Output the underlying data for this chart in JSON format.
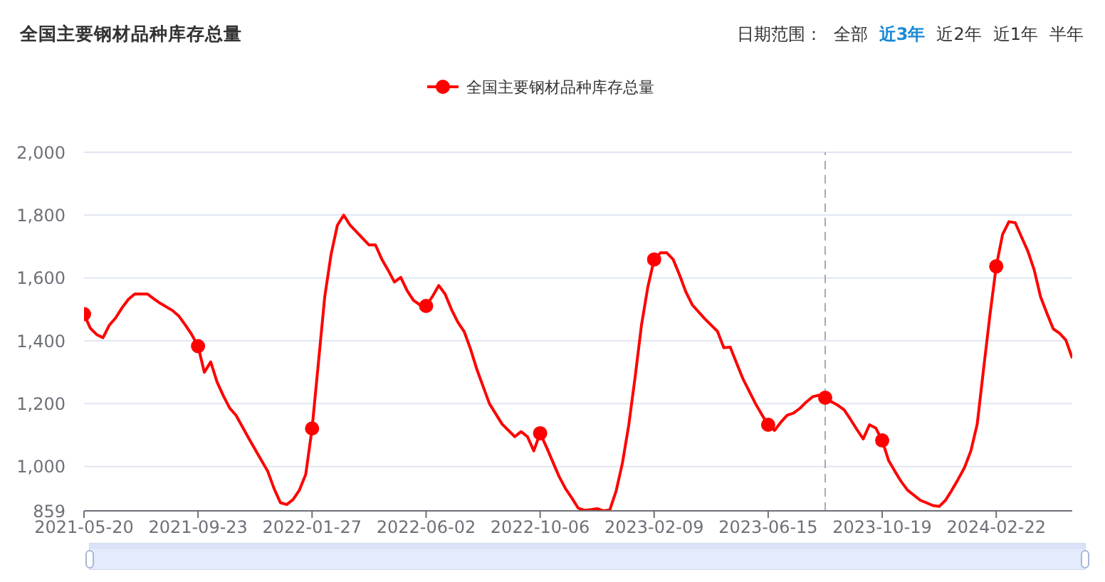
{
  "chart_data": {
    "type": "line",
    "title": "全国主要钢材品种库存总量",
    "annotations": [
      "日期范围：",
      "全部",
      "近3年",
      "近2年",
      "近1年",
      "半年"
    ],
    "x": [
      "2021-05-20",
      "2021-05-27",
      "2021-06-03",
      "2021-06-10",
      "2021-06-17",
      "2021-06-24",
      "2021-07-01",
      "2021-07-08",
      "2021-07-15",
      "2021-07-29",
      "2021-08-05",
      "2021-08-12",
      "2021-08-26",
      "2021-09-02",
      "2021-09-09",
      "2021-09-16",
      "2021-09-23",
      "2021-09-30",
      "2021-10-07",
      "2021-10-14",
      "2021-10-21",
      "2021-10-28",
      "2021-11-04",
      "2021-11-18",
      "2021-12-02",
      "2021-12-09",
      "2021-12-16",
      "2021-12-23",
      "2021-12-30",
      "2022-01-06",
      "2022-01-13",
      "2022-01-20",
      "2022-01-27",
      "2022-02-03",
      "2022-02-10",
      "2022-02-17",
      "2022-02-24",
      "2022-03-03",
      "2022-03-10",
      "2022-03-24",
      "2022-03-31",
      "2022-04-07",
      "2022-04-14",
      "2022-04-21",
      "2022-04-28",
      "2022-05-05",
      "2022-05-12",
      "2022-05-19",
      "2022-05-26",
      "2022-06-02",
      "2022-06-09",
      "2022-06-16",
      "2022-06-23",
      "2022-06-30",
      "2022-07-07",
      "2022-07-14",
      "2022-07-21",
      "2022-07-28",
      "2022-08-04",
      "2022-08-11",
      "2022-08-25",
      "2022-09-08",
      "2022-09-15",
      "2022-09-22",
      "2022-09-29",
      "2022-10-06",
      "2022-10-13",
      "2022-10-20",
      "2022-10-27",
      "2022-11-03",
      "2022-11-10",
      "2022-11-17",
      "2022-11-24",
      "2022-12-01",
      "2022-12-08",
      "2022-12-15",
      "2022-12-22",
      "2022-12-29",
      "2023-01-05",
      "2023-01-12",
      "2023-01-19",
      "2023-01-26",
      "2023-02-02",
      "2023-02-09",
      "2023-02-16",
      "2023-02-23",
      "2023-03-02",
      "2023-03-09",
      "2023-03-16",
      "2023-03-23",
      "2023-04-06",
      "2023-04-20",
      "2023-04-27",
      "2023-05-04",
      "2023-05-11",
      "2023-05-18",
      "2023-06-01",
      "2023-06-08",
      "2023-06-15",
      "2023-06-22",
      "2023-06-29",
      "2023-07-06",
      "2023-07-13",
      "2023-07-20",
      "2023-07-27",
      "2023-08-03",
      "2023-08-10",
      "2023-08-17",
      "2023-08-24",
      "2023-08-31",
      "2023-09-07",
      "2023-09-14",
      "2023-09-21",
      "2023-09-28",
      "2023-10-05",
      "2023-10-12",
      "2023-10-19",
      "2023-10-26",
      "2023-11-02",
      "2023-11-09",
      "2023-11-16",
      "2023-11-30",
      "2023-12-14",
      "2023-12-21",
      "2023-12-28",
      "2024-01-04",
      "2024-01-11",
      "2024-01-18",
      "2024-01-25",
      "2024-02-01",
      "2024-02-08",
      "2024-02-15",
      "2024-02-22",
      "2024-02-29",
      "2024-03-07",
      "2024-03-14",
      "2024-03-21",
      "2024-03-28",
      "2024-04-04",
      "2024-04-11",
      "2024-04-18",
      "2024-04-25",
      "2024-05-02",
      "2024-05-09",
      "2024-05-16"
    ],
    "series": [
      {
        "name": "全国主要钢材品种库存总量",
        "color": "#ff0000",
        "marker": "none",
        "values": [
          1485,
          1440,
          1420,
          1410,
          1450,
          1473,
          1505,
          1532,
          1549,
          1549,
          1534,
          1520,
          1496,
          1478,
          1450,
          1420,
          1383,
          1300,
          1333,
          1269,
          1225,
          1186,
          1163,
          1090,
          1020,
          985,
          930,
          885,
          879,
          895,
          925,
          975,
          1121,
          1330,
          1540,
          1675,
          1768,
          1800,
          1768,
          1726,
          1705,
          1705,
          1660,
          1625,
          1587,
          1602,
          1560,
          1529,
          1515,
          1511,
          1541,
          1576,
          1549,
          1500,
          1460,
          1430,
          1375,
          1310,
          1255,
          1200,
          1135,
          1095,
          1111,
          1095,
          1050,
          1106,
          1062,
          1015,
          968,
          930,
          900,
          868,
          861,
          863,
          866,
          859,
          862,
          922,
          1012,
          1133,
          1285,
          1450,
          1571,
          1659,
          1680,
          1680,
          1659,
          1610,
          1556,
          1515,
          1470,
          1430,
          1378,
          1380,
          1330,
          1280,
          1200,
          1165,
          1133,
          1115,
          1141,
          1163,
          1170,
          1185,
          1205,
          1222,
          1227,
          1219,
          1206,
          1195,
          1180,
          1150,
          1118,
          1088,
          1133,
          1122,
          1083,
          1020,
          985,
          952,
          925,
          893,
          876,
          873,
          893,
          925,
          960,
          997,
          1050,
          1135,
          1310,
          1481,
          1637,
          1738,
          1779,
          1776,
          1730,
          1685,
          1625,
          1540,
          1488,
          1438,
          1424,
          1402,
          1345
        ]
      },
      {
        "type": "scatter",
        "color": "#ff0000",
        "x": [
          "2021-05-20",
          "2021-09-23",
          "2022-01-27",
          "2022-06-02",
          "2022-10-06",
          "2023-02-09",
          "2023-06-15",
          "2023-08-17",
          "2023-10-19",
          "2024-02-22"
        ],
        "values": [
          1485,
          1383,
          1121,
          1511,
          1106,
          1659,
          1133,
          1219,
          1083,
          1637
        ]
      }
    ],
    "xlim": [
      "2021-05-20",
      "2024-05-16"
    ],
    "xticks": [
      "2021-05-20",
      "2021-09-23",
      "2022-01-27",
      "2022-06-02",
      "2022-10-06",
      "2023-02-09",
      "2023-06-15",
      "2023-10-19",
      "2024-02-22"
    ],
    "ylim": [
      859,
      2000
    ],
    "yticks": [
      859,
      {
        "value": 1000,
        "label": "1,000"
      },
      {
        "value": 1200,
        "label": "1,200"
      },
      {
        "value": 1400,
        "label": "1,400"
      },
      {
        "value": 1600,
        "label": "1,600"
      },
      {
        "value": 1800,
        "label": "1,800"
      },
      {
        "value": 2000,
        "label": "2,000"
      }
    ],
    "grid": "y",
    "legend": "top",
    "marker": "circle",
    "line_style": "solid",
    "ref_lines": [
      {
        "axis": "x",
        "value": "2023-08-17",
        "color": "#aaaaaa",
        "line_style": "dashed"
      }
    ]
  }
}
